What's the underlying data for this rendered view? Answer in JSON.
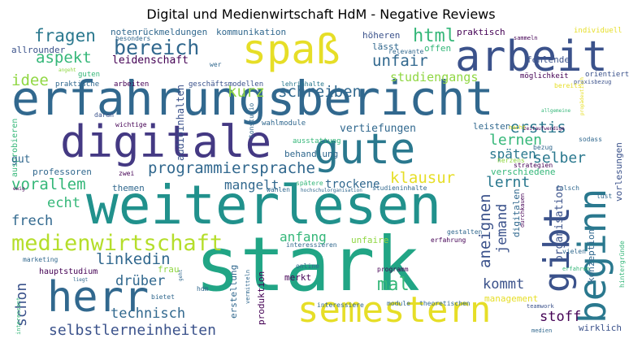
{
  "title": "Digital und Medienwirtschaft HdM - Negative Reviews",
  "colors": {
    "purple": "#440154",
    "indigo": "#3b528b",
    "blue": "#31688e",
    "teal": "#21918c",
    "green": "#35b779",
    "lime": "#90d743",
    "yellow": "#e6de27"
  },
  "words": {
    "erfahrungsbericht": "erfahrungsbericht",
    "stark": "stark",
    "weiterlesen": "weiterlesen",
    "digitale": "digitale",
    "gute": "gute",
    "arbeit": "arbeit",
    "spass": "spaß",
    "semestern": "semestern",
    "herr": "herr",
    "beginn": "beginn",
    "gibt": "gibt",
    "medienwirtschaft": "medienwirtschaft",
    "bereich": "bereich",
    "fragen": "fragen",
    "programmiersprache": "programmiersprache",
    "selbstlerneinheiten": "selbstlerneinheiten",
    "schreiben": "schreiben",
    "klausur": "klausur",
    "html": "html",
    "unfair": "unfair",
    "aspekt": "aspekt",
    "kurz": "kurz",
    "idee": "idee",
    "studiengangs": "studiengangs",
    "erstis": "erstis",
    "lernen": "lernen",
    "selber": "selber",
    "spaeten": "späten",
    "lernt": "lernt",
    "aneignen": "aneignen",
    "jemand": "jemand",
    "vorallem": "vorallem",
    "echt": "echt",
    "frech": "frech",
    "mangelt": "mangelt",
    "trockene": "trockene",
    "anfang": "anfang",
    "linkedin": "linkedin",
    "schon": "schon",
    "drueber": "drüber",
    "technisch": "technisch",
    "mal": "mal",
    "kommt": "kommt",
    "stoff": "stoff",
    "wirklich": "wirklich",
    "leidenschaft": "leidenschaft",
    "allrounder": "allrounder",
    "notenrueckmeldungen": "notenrückmeldungen",
    "kommunikation": "kommunikation",
    "hoeheren": "höheren",
    "laesst": "lässt",
    "offen": "offen",
    "praktisch": "praktisch",
    "fehlende": "fehlende",
    "individuell": "individuell",
    "sammeln": "sammeln",
    "besonders": "besonders",
    "relevante": "relevante",
    "moeglichkeit": "möglichkeit",
    "orientiert": "orientiert",
    "praxisbezug": "praxisbezug",
    "bereits": "bereits",
    "guten": "guten",
    "arbeiten": "arbeiten",
    "geschaeftsmodellen": "geschäftsmodellen",
    "lehrinhalte": "lehrinhalte",
    "praktische": "praktische",
    "wer": "wer",
    "angeht": "angeht",
    "audioinhalten": "audioinhalten",
    "tonstudio": "tonstudio",
    "wahlmodule": "wahlmodule",
    "vertiefungen": "vertiefungen",
    "leisten": "leisten",
    "wichtige": "wichtige",
    "daran": "daran",
    "allgemeine": "allgemeine",
    "zeitaufwendige": "zeitaufwendige",
    "nacht": "nacht",
    "sodass": "sodass",
    "behandlung": "behandlung",
    "ausstattung": "ausstattung",
    "bezug": "bezug",
    "herzens": "herzens",
    "strategien": "strategien",
    "verschiedene": "verschiedene",
    "professoren": "professoren",
    "zwei": "zwei",
    "ausprobieren": "ausprobieren",
    "themen": "themen",
    "spaetere": "spätere",
    "hochschulorganisation": "hochschulorganisation",
    "studieninhalte": "studieninhalte",
    "wahlen": "wahlen",
    "durchkauen": "durchkauen",
    "falsch": "falsch",
    "lust": "lust",
    "digitalen": "digitalen",
    "organisation": "organisation",
    "vorlesungen": "vorlesungen",
    "konzeption": "konzeption",
    "hintergruende": "hintergründe",
    "gestalten": "gestalten",
    "erfahrung": "erfahrung",
    "unfaire": "unfaire",
    "interessieren": "interessieren",
    "erstellung": "erstellung",
    "produktion": "produktion",
    "vermitteln": "vermitteln",
    "marketing": "marketing",
    "hauptstudium": "hauptstudium",
    "frau": "frau",
    "geht": "geht",
    "liegt": "liegt",
    "online": "online",
    "programm": "programm",
    "merkt": "merkt",
    "hdm": "hdm",
    "bietet": "bietet",
    "interessant": "interessant",
    "module": "module",
    "theoretischen": "theoretischen",
    "interessiere": "interessiere",
    "management": "management",
    "vielen": "vielen",
    "erfahren": "erfahren",
    "teamwork": "teamwork",
    "medien": "medien",
    "ewig": "ewig",
    "propaedeutisch": "propädeutisch",
    "gut": "gut"
  }
}
